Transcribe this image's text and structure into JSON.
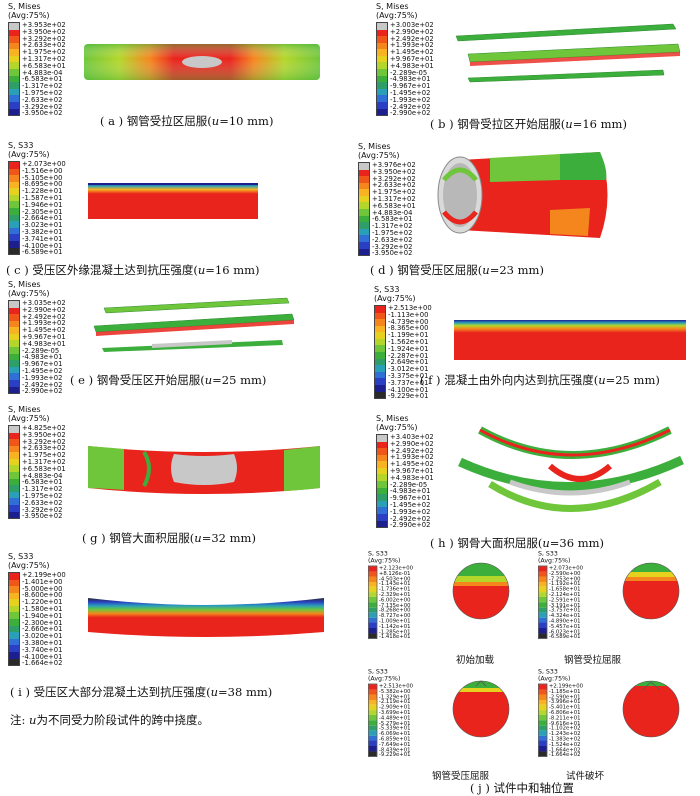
{
  "palette": {
    "mises": [
      "#c8c8c8",
      "#e8241c",
      "#f0551a",
      "#f5861e",
      "#f7b321",
      "#e6d21e",
      "#b4d62a",
      "#6fc63a",
      "#3cae3c",
      "#2f9f6a",
      "#2aa0b8",
      "#2f6fd6",
      "#2a3fc4",
      "#1d1f8f"
    ],
    "s33": [
      "#e8241c",
      "#f0551a",
      "#f5861e",
      "#f7b321",
      "#e6d21e",
      "#b4d62a",
      "#6fc63a",
      "#3cae3c",
      "#2f9f6a",
      "#2aa0b8",
      "#2f6fd6",
      "#2a3fc4",
      "#1d1f8f",
      "#2a2a2a"
    ]
  },
  "panels": {
    "a": {
      "legend_title": "S, Mises",
      "legend_sub": "(Avg:75%)",
      "legend_values": [
        "+3.953e+02",
        "+3.950e+02",
        "+3.292e+02",
        "+2.633e+02",
        "+1.975e+02",
        "+1.317e+02",
        "+6.583e+01",
        "+4.883e-04",
        "-6.583e+01",
        "-1.317e+02",
        "-1.975e+02",
        "-2.633e+02",
        "-3.292e+02",
        "-3.950e+02"
      ],
      "caption_pre": "( a ) 钢管受拉区屈服(",
      "caption_var": "u",
      "caption_post": "=10 mm)"
    },
    "b": {
      "legend_title": "S, Mises",
      "legend_sub": "(Avg:75%)",
      "legend_values": [
        "+3.003e+02",
        "+2.990e+02",
        "+2.492e+02",
        "+1.993e+02",
        "+1.495e+02",
        "+9.967e+01",
        "+4.983e+01",
        "-2.289e-05",
        "-4.983e+01",
        "-9.967e+01",
        "-1.495e+02",
        "-1.993e+02",
        "-2.492e+02",
        "-2.990e+02"
      ],
      "caption_pre": "( b ) 钢骨受拉区开始屈服(",
      "caption_var": "u",
      "caption_post": "=16 mm)"
    },
    "c": {
      "legend_title": "S, S33",
      "legend_sub": "(Avg:75%)",
      "legend_values": [
        "+2.073e+00",
        "-1.516e+00",
        "-5.105e+00",
        "-8.695e+00",
        "-1.228e+01",
        "-1.587e+01",
        "-1.946e+01",
        "-2.305e+01",
        "-2.664e+01",
        "-3.023e+01",
        "-3.382e+01",
        "-3.741e+01",
        "-4.100e+01",
        "-6.589e+01"
      ],
      "caption_pre": "( c ) 受压区外缘混凝土达到抗压强度(",
      "caption_var": "u",
      "caption_post": "=16 mm)"
    },
    "d": {
      "legend_title": "S, Mises",
      "legend_sub": "(Avg:75%)",
      "legend_values": [
        "+3.976e+02",
        "+3.950e+02",
        "+3.292e+02",
        "+2.633e+02",
        "+1.975e+02",
        "+1.317e+02",
        "+6.583e+01",
        "+4.883e-04",
        "-6.583e+01",
        "-1.317e+02",
        "-1.975e+02",
        "-2.633e+02",
        "-3.292e+02",
        "-3.950e+02"
      ],
      "caption_pre": "( d ) 钢管受压区屈服(",
      "caption_var": "u",
      "caption_post": "=23 mm)"
    },
    "e": {
      "legend_title": "S, Mises",
      "legend_sub": "(Avg:75%)",
      "legend_values": [
        "+3.035e+02",
        "+2.990e+02",
        "+2.492e+02",
        "+1.993e+02",
        "+1.495e+02",
        "+9.967e+01",
        "+4.983e+01",
        "-2.289e-05",
        "-4.983e+01",
        "-9.967e+01",
        "-1.495e+02",
        "-1.993e+02",
        "-2.492e+02",
        "-2.990e+02"
      ],
      "caption_pre": "( e ) 钢骨受压区开始屈服(",
      "caption_var": "u",
      "caption_post": "=25 mm)"
    },
    "f": {
      "legend_title": "S, S33",
      "legend_sub": "(Avg:75%)",
      "legend_values": [
        "+2.513e+00",
        "-1.113e+00",
        "-4.739e+00",
        "-8.365e+00",
        "-1.199e+01",
        "-1.562e+01",
        "-1.924e+01",
        "-2.287e+01",
        "-2.649e+01",
        "-3.012e+01",
        "-3.375e+01",
        "-3.737e+01",
        "-4.100e+01",
        "-9.229e+01"
      ],
      "caption_pre": "( f ) 混凝土由外向内达到抗压强度(",
      "caption_var": "u",
      "caption_post": "=25 mm)"
    },
    "g": {
      "legend_title": "S, Mises",
      "legend_sub": "(Avg:75%)",
      "legend_values": [
        "+4.825e+02",
        "+3.950e+02",
        "+3.292e+02",
        "+2.633e+02",
        "+1.975e+02",
        "+1.317e+02",
        "+6.583e+01",
        "+4.883e-04",
        "-6.583e+01",
        "-1.317e+02",
        "-1.975e+02",
        "-2.633e+02",
        "-3.292e+02",
        "-3.950e+02"
      ],
      "caption_pre": "( g ) 钢管大面积屈服(",
      "caption_var": "u",
      "caption_post": "=32 mm)"
    },
    "h": {
      "legend_title": "S, Mises",
      "legend_sub": "(Avg:75%)",
      "legend_values": [
        "+3.403e+02",
        "+2.990e+02",
        "+2.492e+02",
        "+1.993e+02",
        "+1.495e+02",
        "+9.967e+01",
        "+4.983e+01",
        "-2.289e-05",
        "-4.983e+01",
        "-9.967e+01",
        "-1.495e+02",
        "-1.993e+02",
        "-2.492e+02",
        "-2.990e+02"
      ],
      "caption_pre": "( h ) 钢骨大面积屈服(",
      "caption_var": "u",
      "caption_post": "=36 mm)"
    },
    "i": {
      "legend_title": "S, S33",
      "legend_sub": "(Avg:75%)",
      "legend_values": [
        "+2.199e+00",
        "-1.401e+00",
        "-5.000e+00",
        "-8.600e+00",
        "-1.220e+01",
        "-1.580e+01",
        "-1.940e+01",
        "-2.300e+01",
        "-2.660e+01",
        "-3.020e+01",
        "-3.380e+01",
        "-3.740e+01",
        "-4.100e+01",
        "-1.664e+02"
      ],
      "caption_pre": "( i ) 受压区大部分混凝土达到抗压强度(",
      "caption_var": "u",
      "caption_post": "=38 mm)"
    },
    "j": {
      "caption": "( j ) 试件中和轴位置",
      "sub": [
        {
          "legend_title": "S, S33",
          "legend_sub": "(Avg:75%)",
          "legend_values": [
            "+2.123e+00",
            "+8.126e-01",
            "-4.503e+00",
            "-1.143e+01",
            "-1.736e+01",
            "-2.329e+01",
            "-6.002e+00",
            "-7.135e+00",
            "-8.268e+00",
            "-8.727e+00",
            "-1.009e+01",
            "-1.142e+01",
            "-1.285e+01",
            "-1.418e+01"
          ],
          "label": "初始加载"
        },
        {
          "legend_title": "S, S33",
          "legend_sub": "(Avg:75%)",
          "legend_values": [
            "+2.073e+00",
            "-2.590e+00",
            "-7.253e+00",
            "-1.192e+01",
            "-1.658e+01",
            "-2.124e+01",
            "-2.591e+01",
            "-3.191e+01",
            "-3.757e+01",
            "-4.324e+01",
            "-4.890e+01",
            "-5.457e+01",
            "-6.023e+01",
            "-6.589e+01"
          ],
          "label": "钢管受拉屈服"
        },
        {
          "legend_title": "S, S33",
          "legend_sub": "(Avg:75%)",
          "legend_values": [
            "+2.513e+00",
            "-5.382e+00",
            "-1.329e+01",
            "-2.119e+01",
            "-2.909e+01",
            "-3.699e+01",
            "-4.489e+01",
            "-5.279e+01",
            "-5.339e+01",
            "-6.069e+01",
            "-6.859e+01",
            "-7.649e+01",
            "-8.439e+01",
            "-9.229e+01"
          ],
          "label": "钢管受压屈服"
        },
        {
          "legend_title": "S, S33",
          "legend_sub": "(Avg:75%)",
          "legend_values": [
            "+2.199e+00",
            "-1.185e+01",
            "-2.590e+01",
            "-3.996e+01",
            "-5.401e+01",
            "-6.806e+01",
            "-8.211e+01",
            "-9.616e+01",
            "-1.102e+02",
            "-1.243e+02",
            "-1.383e+02",
            "-1.524e+02",
            "-1.664e+02",
            "-1.664e+02"
          ],
          "label": "试件破坏"
        }
      ]
    }
  },
  "note": {
    "pre": "注: ",
    "var": "u",
    "post": "为不同受力阶段试件的跨中挠度。"
  }
}
